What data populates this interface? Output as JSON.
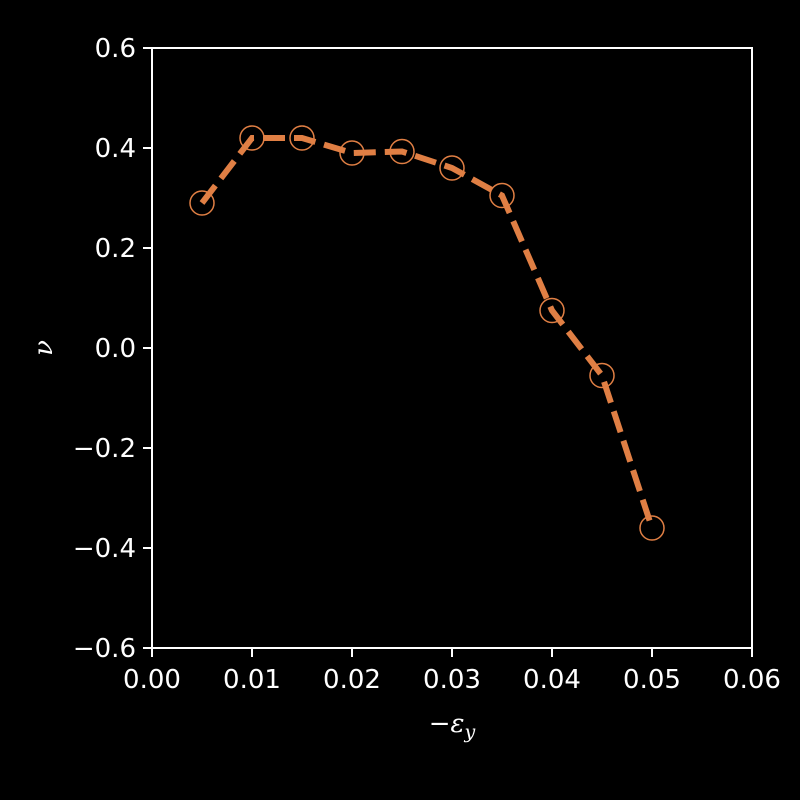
{
  "chart_data": {
    "type": "line",
    "title": "",
    "xlabel": "−ε",
    "xlabel_sub": "y",
    "ylabel": "ν",
    "xlim": [
      0.0,
      0.06
    ],
    "ylim": [
      -0.6,
      0.6
    ],
    "xticks": [
      0.0,
      0.01,
      0.02,
      0.03,
      0.04,
      0.05,
      0.06
    ],
    "xtick_labels": [
      "0.00",
      "0.01",
      "0.02",
      "0.03",
      "0.04",
      "0.05",
      "0.06"
    ],
    "yticks": [
      0.6,
      0.4,
      0.2,
      0.0,
      -0.2,
      -0.4,
      -0.6
    ],
    "ytick_labels": [
      "0.6",
      "0.4",
      "0.2",
      "0.0",
      "−0.2",
      "−0.4",
      "−0.6"
    ],
    "grid": false,
    "series": [
      {
        "x": [
          0.005,
          0.01,
          0.015,
          0.02,
          0.025,
          0.03,
          0.035,
          0.04,
          0.045,
          0.05
        ],
        "y": [
          0.29,
          0.42,
          0.42,
          0.39,
          0.393,
          0.36,
          0.305,
          0.075,
          -0.055,
          -0.36
        ],
        "color": "#e07f44",
        "line_style": "dashed",
        "marker": "open-circle"
      }
    ],
    "background_color": "#000000",
    "axis_color": "#ffffff"
  }
}
